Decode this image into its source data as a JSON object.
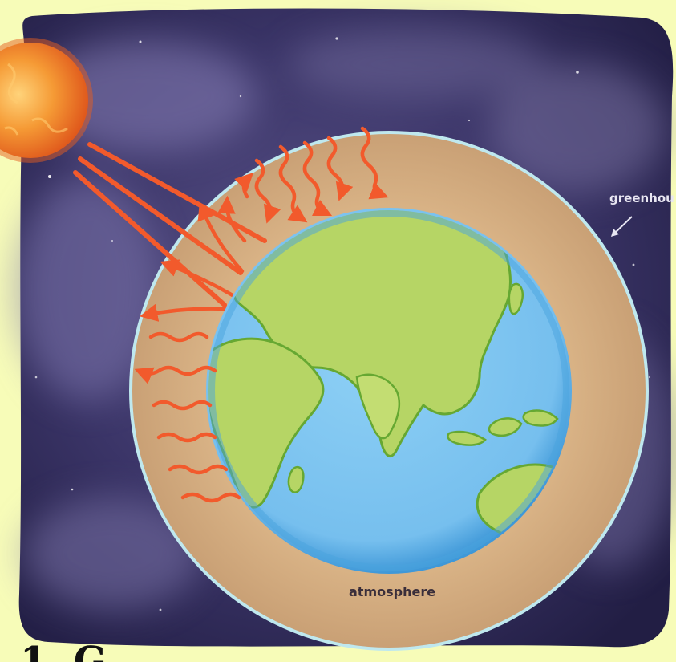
{
  "labels": {
    "greenhouse": "greenhou",
    "atmosphere": "atmosphere",
    "bottom_handwriting": "1. G"
  },
  "colors": {
    "page_background": "#f7fcb8",
    "space_dark": "#27224a",
    "space_mid": "#4a4378",
    "atmosphere": "#d3ab7e",
    "atmosphere_ring": "#bfe8ee",
    "ocean": "#7cc3ef",
    "ocean_edge": "#3f9ad8",
    "land": "#b6d565",
    "land_outline": "#66a832",
    "sun": "#f08a2a",
    "arrows": "#f25a2c"
  },
  "icons": {
    "sun": "sun-icon",
    "earth": "earth-globe-icon"
  }
}
